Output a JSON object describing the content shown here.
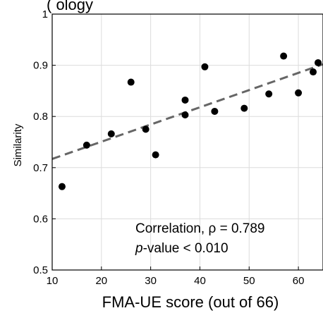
{
  "chart_data": {
    "type": "scatter",
    "title_fragment": "(                              ology",
    "xlabel": "FMA-UE score (out of 66)",
    "ylabel": "Similarity",
    "xlim": [
      10,
      65
    ],
    "ylim": [
      0.5,
      1.0
    ],
    "xticks": [
      10,
      20,
      30,
      40,
      50,
      60
    ],
    "yticks": [
      0.5,
      0.6,
      0.7,
      0.8,
      0.9,
      1.0
    ],
    "ytick_labels": [
      "0.5",
      "0.6",
      "0.7",
      "0.8",
      "0.9",
      "1"
    ],
    "grid": true,
    "series": [
      {
        "points": [
          {
            "x": 12,
            "y": 0.663
          },
          {
            "x": 17,
            "y": 0.744
          },
          {
            "x": 22,
            "y": 0.766
          },
          {
            "x": 26,
            "y": 0.867
          },
          {
            "x": 29,
            "y": 0.775
          },
          {
            "x": 31,
            "y": 0.725
          },
          {
            "x": 37,
            "y": 0.832
          },
          {
            "x": 37,
            "y": 0.803
          },
          {
            "x": 41,
            "y": 0.897
          },
          {
            "x": 43,
            "y": 0.81
          },
          {
            "x": 49,
            "y": 0.816
          },
          {
            "x": 54,
            "y": 0.844
          },
          {
            "x": 57,
            "y": 0.918
          },
          {
            "x": 60,
            "y": 0.846
          },
          {
            "x": 63,
            "y": 0.887
          },
          {
            "x": 64,
            "y": 0.905
          }
        ],
        "color": "#000000"
      }
    ],
    "trendline": {
      "x": [
        10,
        65
      ],
      "y": [
        0.717,
        0.902
      ],
      "style": "dashed",
      "color": "#666666"
    },
    "annotations": {
      "correlation_label": "Correlation, ρ  = 0.789",
      "pvalue_italic": "p",
      "pvalue_rest": "-value < 0.010"
    }
  }
}
